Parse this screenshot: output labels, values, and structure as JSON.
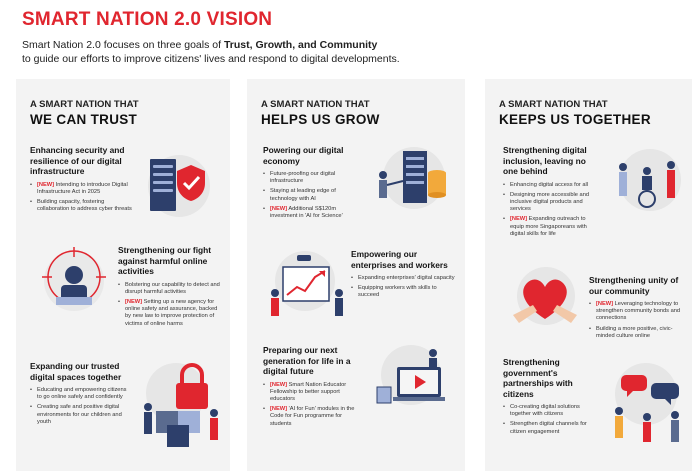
{
  "title": "SMART NATION 2.0 VISION",
  "intro": {
    "prefix": "Smart Nation 2.0 focuses on three goals of ",
    "goals": "Trust, Growth, and Community",
    "line2": "to guide our efforts to improve citizens' lives and respond to digital developments."
  },
  "columns": [
    {
      "small": "A SMART NATION THAT",
      "large": "WE CAN TRUST",
      "blocks": [
        {
          "heading": "Enhancing security and resilience of our digital infrastructure",
          "items": [
            {
              "tag": "[NEW]",
              "text": " Intending to introduce Digital Infrastructure Act in 2025"
            },
            {
              "tag": "",
              "text": "Building capacity, fostering collaboration to address cyber threats"
            }
          ]
        },
        {
          "heading": "Strengthening our fight against harmful online activities",
          "items": [
            {
              "tag": "",
              "text": "Bolstering our capability to detect and disrupt harmful activities"
            },
            {
              "tag": "[NEW]",
              "text": " Setting up a new agency for online safety and assurance, backed by new law to improve protection of victims of online harms"
            }
          ]
        },
        {
          "heading": "Expanding our trusted digital spaces together",
          "items": [
            {
              "tag": "",
              "text": "Educating and empowering citizens to go online safely and confidently"
            },
            {
              "tag": "",
              "text": "Creating safe and positive digital environments for our children and youth"
            }
          ]
        }
      ]
    },
    {
      "small": "A SMART NATION THAT",
      "large": "HELPS US GROW",
      "blocks": [
        {
          "heading": "Powering our digital economy",
          "items": [
            {
              "tag": "",
              "text": "Future-proofing our digital infrastructure"
            },
            {
              "tag": "",
              "text": "Staying at leading edge of technology with AI"
            },
            {
              "tag": "[NEW]",
              "text": " Additional S$120m investment in 'AI for Science'"
            }
          ]
        },
        {
          "heading": "Empowering our enterprises and workers",
          "items": [
            {
              "tag": "",
              "text": "Expanding enterprises' digital capacity"
            },
            {
              "tag": "",
              "text": "Equipping workers with skills to succeed"
            }
          ]
        },
        {
          "heading": "Preparing our next generation for life in a digital future",
          "items": [
            {
              "tag": "[NEW]",
              "text": " Smart Nation Educator Fellowship to better support educators"
            },
            {
              "tag": "[NEW]",
              "text": " 'AI for Fun' modules in the Code for Fun programme for students"
            }
          ]
        }
      ]
    },
    {
      "small": "A SMART NATION THAT",
      "large": "KEEPS US TOGETHER",
      "blocks": [
        {
          "heading": "Strengthening digital inclusion, leaving no one behind",
          "items": [
            {
              "tag": "",
              "text": "Enhancing digital access for all"
            },
            {
              "tag": "",
              "text": "Designing more accessible and inclusive digital products and services"
            },
            {
              "tag": "[NEW]",
              "text": " Expanding outreach to equip more Singaporeans with digital skills for life"
            }
          ]
        },
        {
          "heading": "Strengthening unity of our community",
          "items": [
            {
              "tag": "[NEW]",
              "text": " Leveraging technology to strengthen community bonds and connections"
            },
            {
              "tag": "",
              "text": "Building a more positive, civic-minded culture online"
            }
          ]
        },
        {
          "heading": "Strengthening government's partnerships with citizens",
          "items": [
            {
              "tag": "",
              "text": "Co-creating digital solutions together with citizens"
            },
            {
              "tag": "",
              "text": "Strengthen digital channels for citizen engagement"
            }
          ]
        }
      ]
    }
  ],
  "colors": {
    "accent": "#e0262f",
    "panel": "#f3f3f3",
    "navy": "#2d3f6b",
    "gold": "#f2a93b"
  },
  "icons": [
    "server-shield-icon",
    "hacker-target-icon",
    "padlock-puzzle-icon",
    "server-stack-icon",
    "growth-chart-icon",
    "video-laptop-icon",
    "elderly-wheelchair-icon",
    "heart-hands-icon",
    "speech-bubbles-icon"
  ]
}
